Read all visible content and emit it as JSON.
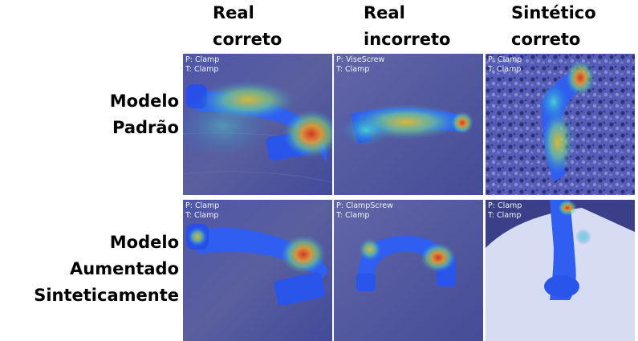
{
  "columns": [
    {
      "label": "Real\ncorreto"
    },
    {
      "label": "Real\nincorreto"
    },
    {
      "label": "Sintético\ncorreto"
    }
  ],
  "rows": [
    {
      "label": "Modelo\nPadrão"
    },
    {
      "label": "Modelo Aumentado\nSinteticamente"
    }
  ],
  "cells": [
    {
      "pred": "P: Clamp",
      "true": "T: Clamp"
    },
    {
      "pred": "P: ViseScrew",
      "true": "T: Clamp"
    },
    {
      "pred": "P: Clamp",
      "true": "T: Clamp"
    },
    {
      "pred": "P: Clamp",
      "true": "T: Clamp"
    },
    {
      "pred": "P: ClampScrew",
      "true": "T: Clamp"
    },
    {
      "pred": "P: Clamp",
      "true": "T: Clamp"
    }
  ]
}
